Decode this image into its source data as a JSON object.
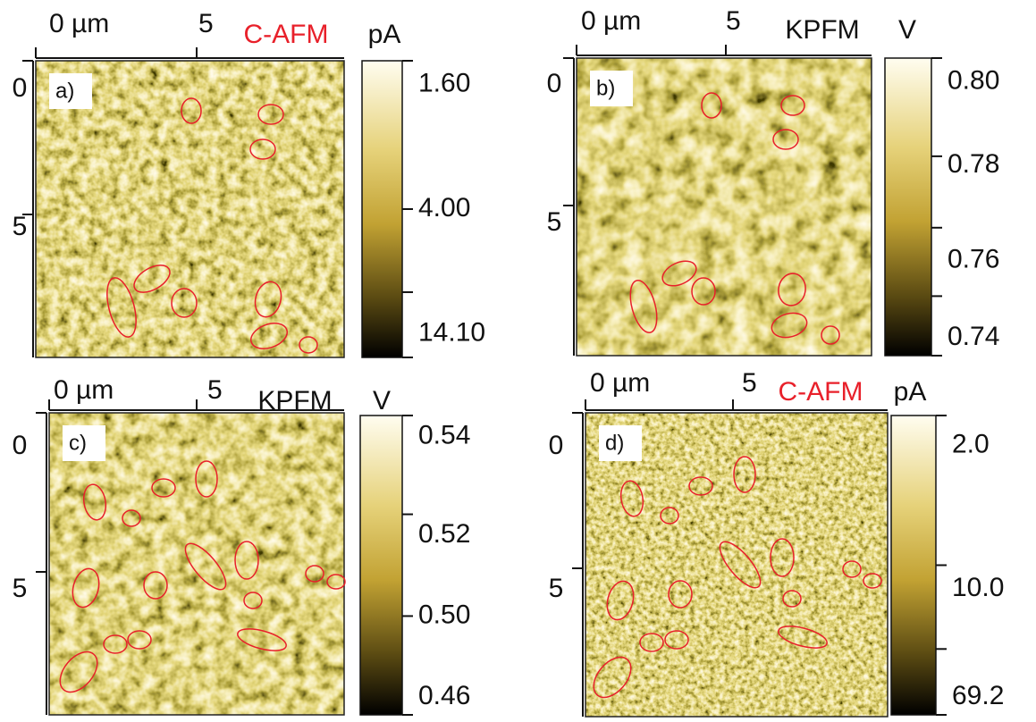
{
  "panels": [
    {
      "label": "a)",
      "technique": "C-AFM",
      "unit": "pA",
      "x_labels": [
        "0 µm",
        "5"
      ],
      "y_labels": [
        "0",
        "5"
      ],
      "colorbar_labels": [
        "1.60",
        "4.00",
        "14.10"
      ]
    },
    {
      "label": "b)",
      "technique": "KPFM",
      "unit": "V",
      "x_labels": [
        "0 µm",
        "5"
      ],
      "y_labels": [
        "0",
        "5"
      ],
      "colorbar_labels": [
        "0.80",
        "0.78",
        "0.76",
        "0.74"
      ]
    },
    {
      "label": "c)",
      "technique": "KPFM",
      "unit": "V",
      "x_labels": [
        "0 µm",
        "5"
      ],
      "y_labels": [
        "0",
        "5"
      ],
      "colorbar_labels": [
        "0.54",
        "0.52",
        "0.50",
        "0.46"
      ]
    },
    {
      "label": "d)",
      "technique": "C-AFM",
      "unit": "pA",
      "x_labels": [
        "0 µm",
        "5"
      ],
      "y_labels": [
        "0",
        "5"
      ],
      "colorbar_labels": [
        "2.0",
        "10.0",
        "69.2"
      ]
    }
  ]
}
